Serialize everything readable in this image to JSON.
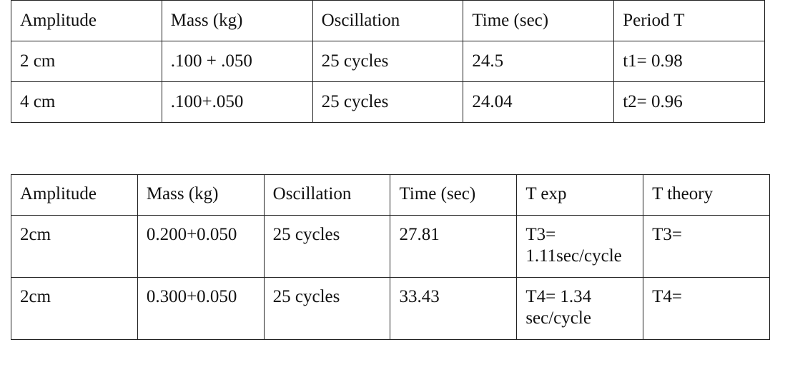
{
  "tables": [
    {
      "header": [
        "Amplitude",
        "Mass (kg)",
        "Oscillation",
        "Time (sec)",
        "Period T"
      ],
      "rows": [
        [
          "2 cm",
          ".100 + .050",
          "25 cycles",
          "24.5",
          "t1= 0.98"
        ],
        [
          "4 cm",
          ".100+.050",
          "25 cycles",
          "24.04",
          "t2= 0.96"
        ]
      ]
    },
    {
      "header": [
        "Amplitude",
        "Mass (kg)",
        "Oscillation",
        "Time (sec)",
        "T exp",
        "T theory"
      ],
      "rows": [
        [
          "2cm",
          "0.200+0.050",
          "25  cycles",
          "27.81",
          "T3= 1.11sec/cycle",
          "T3="
        ],
        [
          "2cm",
          "0.300+0.050",
          "25 cycles",
          "33.43",
          "T4= 1.34 sec/cycle",
          "T4="
        ]
      ]
    }
  ]
}
